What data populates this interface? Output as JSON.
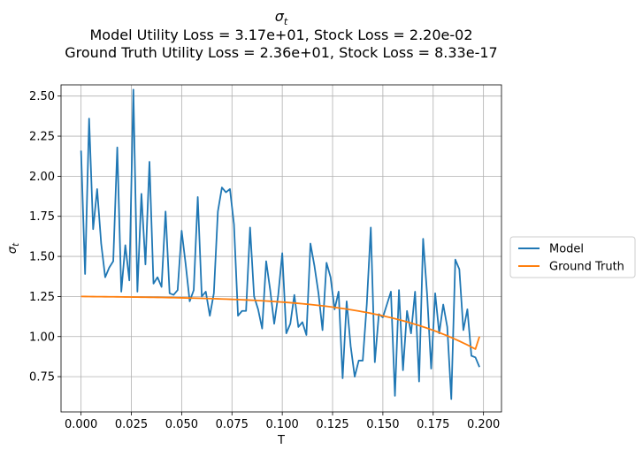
{
  "chart_data": {
    "type": "line",
    "title_symbol": "σ",
    "title_symbol_sub": "t",
    "title_line2": "Model Utility Loss = 3.17e+01, Stock Loss = 2.20e-02",
    "title_line3": "Ground Truth Utility Loss = 2.36e+01, Stock Loss = 8.33e-17",
    "xlabel": "T",
    "ylabel_symbol": "σ",
    "ylabel_sub": "t",
    "xlim": [
      -0.00995,
      0.20895
    ],
    "ylim": [
      0.53,
      2.57
    ],
    "xticks": [
      0.0,
      0.025,
      0.05,
      0.075,
      0.1,
      0.125,
      0.15,
      0.175,
      0.2
    ],
    "xtick_labels": [
      "0.000",
      "0.025",
      "0.050",
      "0.075",
      "0.100",
      "0.125",
      "0.150",
      "0.175",
      "0.200"
    ],
    "yticks": [
      0.75,
      1.0,
      1.25,
      1.5,
      1.75,
      2.0,
      2.25,
      2.5
    ],
    "ytick_labels": [
      "0.75",
      "1.00",
      "1.25",
      "1.50",
      "1.75",
      "2.00",
      "2.25",
      "2.50"
    ],
    "grid": true,
    "legend_position": "right-outside",
    "series": [
      {
        "name": "Model",
        "color": "#1f77b4",
        "values": [
          2.16,
          1.39,
          2.36,
          1.67,
          1.92,
          1.58,
          1.37,
          1.43,
          1.47,
          2.18,
          1.28,
          1.57,
          1.35,
          2.54,
          1.28,
          1.89,
          1.45,
          2.09,
          1.33,
          1.37,
          1.31,
          1.78,
          1.27,
          1.26,
          1.29,
          1.66,
          1.45,
          1.22,
          1.29,
          1.87,
          1.25,
          1.28,
          1.13,
          1.27,
          1.78,
          1.93,
          1.9,
          1.92,
          1.7,
          1.13,
          1.16,
          1.16,
          1.68,
          1.25,
          1.17,
          1.05,
          1.47,
          1.29,
          1.08,
          1.26,
          1.52,
          1.02,
          1.08,
          1.26,
          1.06,
          1.09,
          1.01,
          1.58,
          1.44,
          1.27,
          1.04,
          1.46,
          1.37,
          1.17,
          1.28,
          0.74,
          1.22,
          0.94,
          0.75,
          0.85,
          0.85,
          1.2,
          1.68,
          0.84,
          1.14,
          1.12,
          1.2,
          1.28,
          0.63,
          1.29,
          0.79,
          1.16,
          1.02,
          1.28,
          0.72,
          1.61,
          1.26,
          0.8,
          1.27,
          1.02,
          1.2,
          1.06,
          0.61,
          1.48,
          1.42,
          1.04,
          1.17,
          0.88,
          0.87,
          0.81
        ]
      },
      {
        "name": "Ground Truth",
        "color": "#ff7f0e",
        "values": [
          1.25,
          1.2498,
          1.2495,
          1.2493,
          1.249,
          1.2488,
          1.2485,
          1.2482,
          1.248,
          1.2477,
          1.2474,
          1.2471,
          1.2468,
          1.2465,
          1.2462,
          1.2458,
          1.2455,
          1.2451,
          1.2447,
          1.2443,
          1.2439,
          1.2434,
          1.243,
          1.2425,
          1.242,
          1.2415,
          1.2409,
          1.2403,
          1.2397,
          1.2391,
          1.2384,
          1.2377,
          1.237,
          1.2362,
          1.2354,
          1.2345,
          1.2336,
          1.2327,
          1.2317,
          1.2307,
          1.2296,
          1.2284,
          1.2272,
          1.226,
          1.2246,
          1.2232,
          1.2218,
          1.2202,
          1.2186,
          1.2169,
          1.2151,
          1.2133,
          1.2113,
          1.2092,
          1.2071,
          1.2048,
          1.2024,
          1.1999,
          1.1973,
          1.1945,
          1.1917,
          1.1887,
          1.1855,
          1.1822,
          1.1788,
          1.1752,
          1.1714,
          1.1675,
          1.1634,
          1.1591,
          1.1546,
          1.15,
          1.1451,
          1.1401,
          1.1348,
          1.1293,
          1.1236,
          1.1177,
          1.1115,
          1.105,
          1.0983,
          1.0914,
          1.0841,
          1.0766,
          1.0688,
          1.0606,
          1.0522,
          1.0434,
          1.0343,
          1.0248,
          1.015,
          1.0048,
          0.9942,
          0.9832,
          0.9718,
          0.96,
          0.9477,
          0.935,
          0.9219,
          1.0
        ]
      }
    ],
    "x_start": 0.0,
    "x_step": 0.002
  }
}
